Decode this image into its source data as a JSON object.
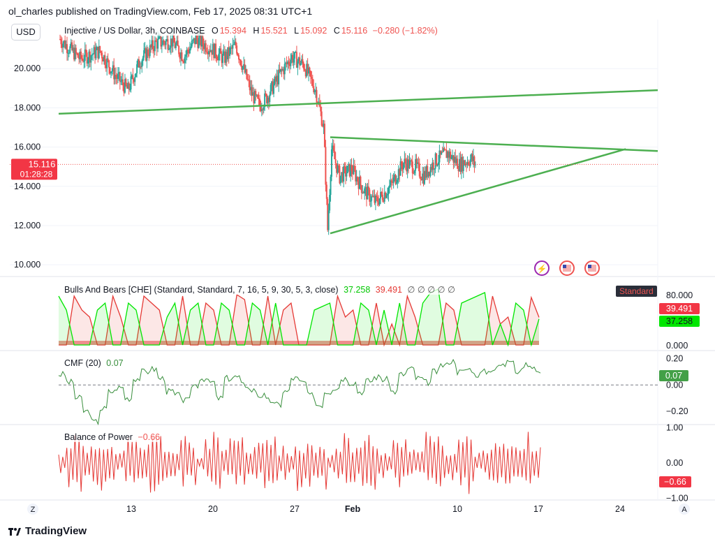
{
  "header": {
    "publisher": "ol_charles published on TradingView.com, Feb 17, 2025 08:31 UTC+1",
    "currency_button": "USD"
  },
  "main_legend": {
    "symbol": "Injective / US Dollar, 3h, COINBASE",
    "o_label": "O",
    "o": "15.394",
    "h_label": "H",
    "h": "15.521",
    "l_label": "L",
    "l": "15.092",
    "c_label": "C",
    "c": "15.116",
    "change": "−0.280 (−1.82%)"
  },
  "price_tag": {
    "price": "15.116",
    "countdown": "01:28:28"
  },
  "bulls_bears": {
    "title": "Bulls And Bears [CHE] (Standard, Standard, 7, 16, 5, 9, 30, 5, 3, close)",
    "v1": "37.258",
    "v2": "39.491",
    "dots": "∅ ∅ ∅ ∅ ∅",
    "tag": "Standard",
    "red_badge": "39.491",
    "green_badge": "37.258"
  },
  "cmf": {
    "title": "CMF (20)",
    "value": "0.07",
    "badge": "0.07"
  },
  "bop": {
    "title": "Balance of Power",
    "value": "−0.66",
    "badge": "−0.66"
  },
  "footer": {
    "brand": "TradingView",
    "z_label": "Z",
    "a_label": "A"
  },
  "colors": {
    "up": "#26a69a",
    "down": "#ef5350",
    "green_line": "#4caf50",
    "bull": "#00e600",
    "bear": "#e53935",
    "cmf": "#388e3c",
    "bop": "#e53935"
  },
  "chart_data": {
    "type": "candlestick",
    "x_ticks": [
      "13",
      "20",
      "27",
      "Feb",
      "10",
      "17",
      "24"
    ],
    "price_axis": {
      "ticks": [
        "20.000",
        "18.000",
        "16.000",
        "14.000",
        "12.000",
        "10.000"
      ],
      "range": [
        9.4,
        22.5
      ]
    },
    "price_path": [
      [
        0,
        21.5
      ],
      [
        5,
        20.5
      ],
      [
        10,
        20.9
      ],
      [
        14,
        19.6
      ],
      [
        17,
        18.9
      ],
      [
        20,
        20.4
      ],
      [
        24,
        21.3
      ],
      [
        28,
        21.4
      ],
      [
        31,
        20.6
      ],
      [
        34,
        21.5
      ],
      [
        38,
        21.0
      ],
      [
        41,
        20.5
      ],
      [
        44,
        21.2
      ],
      [
        48,
        18.7
      ],
      [
        50,
        18.1
      ],
      [
        52,
        18.6
      ],
      [
        55,
        19.7
      ],
      [
        58,
        20.6
      ],
      [
        61,
        20.2
      ],
      [
        64,
        18.9
      ],
      [
        66,
        17.0
      ],
      [
        67,
        11.8
      ],
      [
        68,
        15.9
      ],
      [
        70,
        14.5
      ],
      [
        73,
        14.9
      ],
      [
        76,
        13.8
      ],
      [
        79,
        13.2
      ],
      [
        81,
        13.6
      ],
      [
        83,
        14.1
      ],
      [
        86,
        15.2
      ],
      [
        89,
        15.0
      ],
      [
        91,
        14.5
      ],
      [
        94,
        15.3
      ],
      [
        97,
        15.7
      ],
      [
        100,
        15.1
      ],
      [
        103,
        15.4
      ],
      [
        104,
        15.12
      ]
    ],
    "trendlines": [
      {
        "x1": 0,
        "y1": 17.7,
        "x2": 150,
        "y2": 18.9
      },
      {
        "x1": 68,
        "y1": 16.5,
        "x2": 150,
        "y2": 15.8
      },
      {
        "x1": 68,
        "y1": 11.6,
        "x2": 142,
        "y2": 15.9
      }
    ],
    "current_price": 15.116,
    "bulls_bears": {
      "axis_ticks": [
        "80.000",
        "0.000"
      ],
      "range": [
        0,
        80
      ],
      "bears": [
        0,
        0,
        70,
        50,
        40,
        0,
        0,
        70,
        40,
        0,
        0,
        70,
        60,
        50,
        0,
        0,
        70,
        0,
        0,
        60,
        50,
        0,
        0,
        72,
        65,
        0,
        0,
        70,
        0,
        50,
        60,
        0,
        0,
        0,
        0,
        0,
        70,
        40,
        50,
        0,
        0,
        60,
        0,
        30,
        0,
        70,
        40,
        0,
        0,
        0,
        60,
        50,
        0,
        0,
        0,
        0,
        70,
        30,
        40,
        0,
        0,
        68,
        39.491
      ],
      "bulls": [
        70,
        50,
        0,
        0,
        0,
        50,
        60,
        0,
        0,
        60,
        50,
        0,
        0,
        0,
        40,
        60,
        0,
        50,
        60,
        0,
        0,
        60,
        50,
        0,
        0,
        60,
        50,
        0,
        60,
        0,
        0,
        0,
        0,
        50,
        55,
        60,
        0,
        0,
        0,
        60,
        50,
        0,
        50,
        0,
        60,
        0,
        0,
        60,
        75,
        80,
        0,
        0,
        60,
        65,
        70,
        75,
        0,
        30,
        0,
        60,
        50,
        0,
        37.258
      ]
    },
    "cmf": {
      "axis_ticks": [
        "0.20",
        "0.00",
        "−0.20"
      ],
      "range": [
        -0.3,
        0.25
      ],
      "values": [
        0.08,
        0.02,
        -0.1,
        -0.2,
        -0.28,
        -0.18,
        -0.05,
        -0.02,
        -0.1,
        0.05,
        0.1,
        0.12,
        0.05,
        -0.05,
        -0.08,
        -0.12,
        0.0,
        0.05,
        0.02,
        -0.1,
        0.05,
        0.06,
        0.0,
        -0.04,
        -0.08,
        -0.12,
        -0.15,
        -0.05,
        0.05,
        0.02,
        -0.08,
        -0.15,
        -0.05,
        -0.02,
        0.05,
        0.02,
        -0.05,
        0.03,
        0.06,
        0.04,
        -0.05,
        0.08,
        0.12,
        0.05,
        0.02,
        0.1,
        0.15,
        0.18,
        0.1,
        0.12,
        0.08,
        0.1,
        0.12,
        0.15,
        0.2,
        0.1,
        0.15,
        0.12,
        0.07
      ]
    },
    "bop": {
      "axis_ticks": [
        "1.00",
        "0.00",
        "−1.00"
      ],
      "range": [
        -1.05,
        1.05
      ],
      "values": [
        0.3,
        -0.8,
        0.9,
        -0.5,
        0.7,
        -0.9,
        0.6,
        -0.3,
        0.8,
        -0.7,
        0.5,
        -0.9,
        0.9,
        -0.6,
        0.4,
        -0.8,
        0.7,
        -0.2,
        0.9,
        -0.9,
        0.5,
        -0.7,
        0.8,
        -0.4,
        0.6,
        -0.9,
        0.9,
        -0.5,
        0.3,
        -0.8,
        0.7,
        -0.6,
        0.8,
        -0.3,
        0.5,
        -0.9,
        0.6,
        -0.7,
        0.9,
        -0.5,
        0.4,
        -0.8,
        0.7,
        -0.4,
        0.6,
        -0.9,
        0.8,
        -0.5,
        0.5,
        -0.7,
        0.9,
        -0.3,
        0.6,
        -0.8,
        0.7,
        -0.6,
        0.5,
        -0.9,
        0.8,
        -0.66
      ]
    }
  }
}
